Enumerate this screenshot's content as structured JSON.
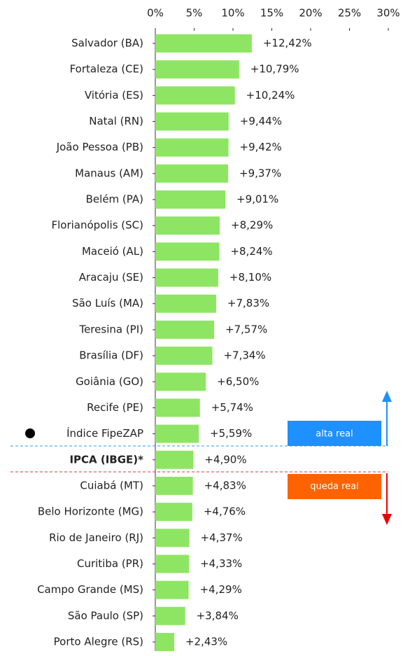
{
  "chart_data": {
    "type": "bar",
    "orientation": "horizontal",
    "categories": [
      "Salvador (BA)",
      "Fortaleza (CE)",
      "Vitória (ES)",
      "Natal (RN)",
      "João Pessoa (PB)",
      "Manaus (AM)",
      "Belém (PA)",
      "Florianópolis (SC)",
      "Maceió (AL)",
      "Aracaju (SE)",
      "São Luís (MA)",
      "Teresina (PI)",
      "Brasília (DF)",
      "Goiânia (GO)",
      "Recife (PE)",
      "Índice FipeZAP",
      "IPCA (IBGE)*",
      "Cuiabá (MT)",
      "Belo Horizonte (MG)",
      "Rio de Janeiro (RJ)",
      "Curitiba (PR)",
      "Campo Grande (MS)",
      "São Paulo (SP)",
      "Porto Alegre (RS)"
    ],
    "values": [
      12.42,
      10.79,
      10.24,
      9.44,
      9.42,
      9.37,
      9.01,
      8.29,
      8.24,
      8.1,
      7.83,
      7.57,
      7.34,
      6.5,
      5.74,
      5.59,
      4.9,
      4.83,
      4.76,
      4.37,
      4.33,
      4.29,
      3.84,
      2.43
    ],
    "value_labels": [
      "+12,42%",
      "+10,79%",
      "+10,24%",
      "+9,44%",
      "+9,42%",
      "+9,37%",
      "+9,01%",
      "+8,29%",
      "+8,24%",
      "+8,10%",
      "+7,83%",
      "+7,57%",
      "+7,34%",
      "+6,50%",
      "+5,74%",
      "+5,59%",
      "+4,90%",
      "+4,83%",
      "+4,76%",
      "+4,37%",
      "+4,33%",
      "+4,29%",
      "+3,84%",
      "+2,43%"
    ],
    "color": "#8ee563",
    "xlim": [
      0,
      30
    ],
    "xticks": [
      {
        "value": 0,
        "label": "0%"
      },
      {
        "value": 5,
        "label": "5%"
      },
      {
        "value": 10,
        "label": "10%"
      },
      {
        "value": 15,
        "label": "15%"
      },
      {
        "value": 20,
        "label": "20%"
      },
      {
        "value": 25,
        "label": "25%"
      },
      {
        "value": 30,
        "label": "30%"
      }
    ],
    "annotations": [
      "alta real",
      "queda real"
    ]
  }
}
